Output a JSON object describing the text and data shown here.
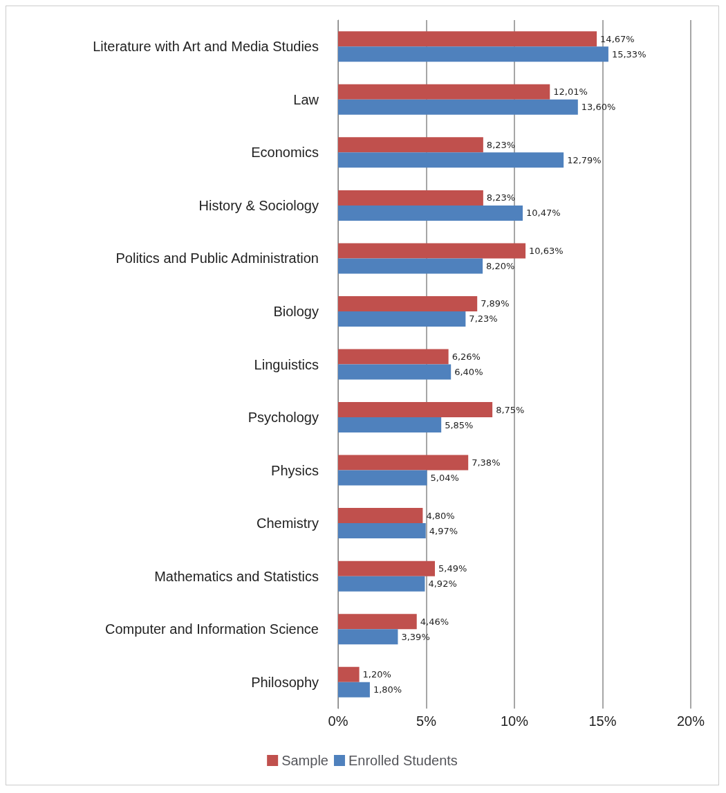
{
  "chart_data": {
    "type": "bar",
    "orientation": "horizontal",
    "categories": [
      "Literature with Art and Media Studies",
      "Law",
      "Economics",
      "History & Sociology",
      "Politics and Public Administration",
      "Biology",
      "Linguistics",
      "Psychology",
      "Physics",
      "Chemistry",
      "Mathematics and Statistics",
      "Computer and Information Science",
      "Philosophy"
    ],
    "series": [
      {
        "name": "Sample",
        "color": "#c0504d",
        "values": [
          14.67,
          12.01,
          8.23,
          8.23,
          10.63,
          7.89,
          6.26,
          8.75,
          7.38,
          4.8,
          5.49,
          4.46,
          1.2
        ],
        "value_labels": [
          "14,67%",
          "12,01%",
          "8,23%",
          "8,23%",
          "10,63%",
          "7,89%",
          "6,26%",
          "8,75%",
          "7,38%",
          "4,80%",
          "5,49%",
          "4,46%",
          "1,20%"
        ]
      },
      {
        "name": "Enrolled Students",
        "color": "#4f81bd",
        "values": [
          15.33,
          13.6,
          12.79,
          10.47,
          8.2,
          7.23,
          6.4,
          5.85,
          5.04,
          4.97,
          4.92,
          3.39,
          1.8
        ],
        "value_labels": [
          "15,33%",
          "13,60%",
          "12,79%",
          "10,47%",
          "8,20%",
          "7,23%",
          "6,40%",
          "5,85%",
          "5,04%",
          "4,97%",
          "4,92%",
          "3,39%",
          "1,80%"
        ]
      }
    ],
    "xlim": [
      0,
      20
    ],
    "xticks": [
      {
        "value": 0,
        "label": "0%"
      },
      {
        "value": 5,
        "label": "5%"
      },
      {
        "value": 10,
        "label": "10%"
      },
      {
        "value": 15,
        "label": "15%"
      },
      {
        "value": 20,
        "label": "20%"
      }
    ],
    "grid": "x",
    "legend": "bottom"
  }
}
